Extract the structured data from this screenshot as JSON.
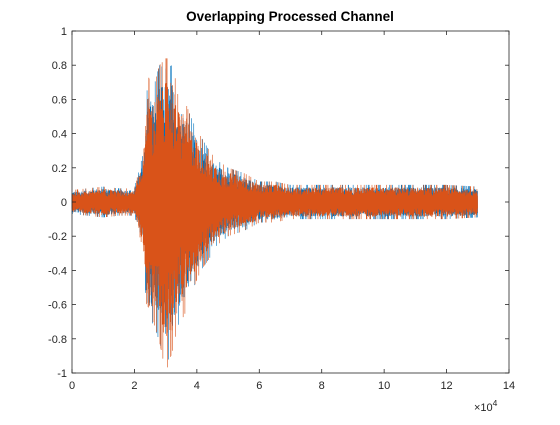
{
  "chart_data": {
    "type": "line",
    "title": "Overlapping Processed Channel",
    "xlabel": "",
    "ylabel": "",
    "xlim": [
      0,
      140000
    ],
    "ylim": [
      -1,
      1
    ],
    "x_tick_labels": [
      "0",
      "2",
      "4",
      "6",
      "8",
      "10",
      "12",
      "14"
    ],
    "x_tick_values": [
      0,
      20000,
      40000,
      60000,
      80000,
      100000,
      120000,
      140000
    ],
    "x_exponent_label": "×10",
    "x_exponent_power": "4",
    "y_tick_labels": [
      "-1",
      "-0.8",
      "-0.6",
      "-0.4",
      "-0.2",
      "0",
      "0.2",
      "0.4",
      "0.6",
      "0.8",
      "1"
    ],
    "y_tick_values": [
      -1,
      -0.8,
      -0.6,
      -0.4,
      -0.2,
      0,
      0.2,
      0.4,
      0.6,
      0.8,
      1
    ],
    "grid": false,
    "legend": "none",
    "series": [
      {
        "color": "#0072BD",
        "x": [
          0,
          5000,
          10000,
          15000,
          20000,
          23000,
          24000,
          26000,
          28000,
          30000,
          32000,
          34000,
          36000,
          38000,
          40000,
          42000,
          44000,
          46000,
          50000,
          55000,
          60000,
          65000,
          70000,
          80000,
          90000,
          100000,
          110000,
          120000,
          130000
        ],
        "upper": [
          0.07,
          0.08,
          0.09,
          0.08,
          0.08,
          0.3,
          0.77,
          0.66,
          0.8,
          0.78,
          0.8,
          0.62,
          0.6,
          0.5,
          0.42,
          0.36,
          0.3,
          0.25,
          0.2,
          0.17,
          0.12,
          0.12,
          0.1,
          0.1,
          0.1,
          0.1,
          0.1,
          0.1,
          0.09
        ],
        "lower": [
          -0.07,
          -0.08,
          -0.09,
          -0.08,
          -0.08,
          -0.3,
          -0.77,
          -0.7,
          -0.82,
          -0.95,
          -0.88,
          -0.72,
          -0.66,
          -0.55,
          -0.45,
          -0.38,
          -0.33,
          -0.26,
          -0.2,
          -0.17,
          -0.12,
          -0.12,
          -0.1,
          -0.1,
          -0.1,
          -0.1,
          -0.1,
          -0.1,
          -0.09
        ]
      },
      {
        "color": "#D95319",
        "x": [
          0,
          5000,
          10000,
          15000,
          20000,
          23000,
          24000,
          26000,
          28000,
          30000,
          32000,
          34000,
          36000,
          38000,
          40000,
          42000,
          44000,
          46000,
          50000,
          55000,
          60000,
          65000,
          70000,
          80000,
          90000,
          100000,
          110000,
          120000,
          130000
        ],
        "upper": [
          0.07,
          0.08,
          0.09,
          0.08,
          0.08,
          0.3,
          0.76,
          0.65,
          0.8,
          0.84,
          0.84,
          0.62,
          0.6,
          0.5,
          0.42,
          0.36,
          0.3,
          0.25,
          0.2,
          0.17,
          0.12,
          0.12,
          0.1,
          0.1,
          0.1,
          0.1,
          0.1,
          0.1,
          0.09
        ],
        "lower": [
          -0.07,
          -0.08,
          -0.09,
          -0.08,
          -0.08,
          -0.3,
          -0.76,
          -0.7,
          -0.82,
          -1.0,
          -0.88,
          -0.72,
          -0.66,
          -0.55,
          -0.45,
          -0.38,
          -0.33,
          -0.26,
          -0.2,
          -0.17,
          -0.12,
          -0.12,
          -0.1,
          -0.1,
          -0.1,
          -0.1,
          -0.1,
          -0.1,
          -0.09
        ]
      }
    ]
  }
}
